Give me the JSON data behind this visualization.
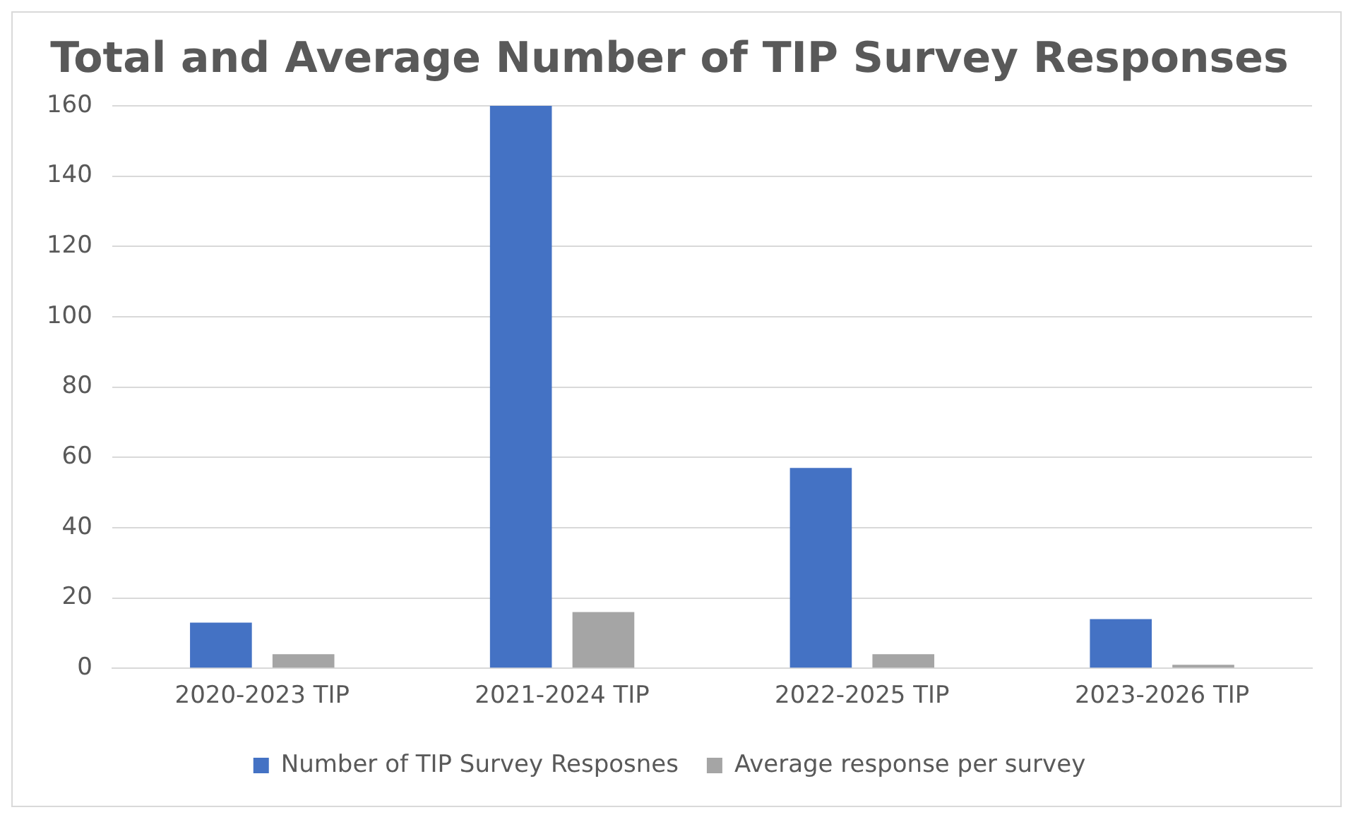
{
  "chart_data": {
    "type": "bar",
    "title": "Total and Average Number of TIP Survey Responses",
    "categories": [
      "2020-2023 TIP",
      "2021-2024 TIP",
      "2022-2025 TIP",
      "2023-2026 TIP"
    ],
    "series": [
      {
        "name": "Number of TIP Survey Resposnes",
        "color": "#4472c4",
        "values": [
          13,
          160,
          57,
          14
        ]
      },
      {
        "name": "Average response per survey",
        "color": "#a5a5a5",
        "values": [
          4,
          16,
          4,
          1
        ]
      }
    ],
    "ylim": [
      0,
      160
    ],
    "yticks": [
      0,
      20,
      40,
      60,
      80,
      100,
      120,
      140,
      160
    ],
    "grid": "y",
    "legend": "bottom"
  }
}
